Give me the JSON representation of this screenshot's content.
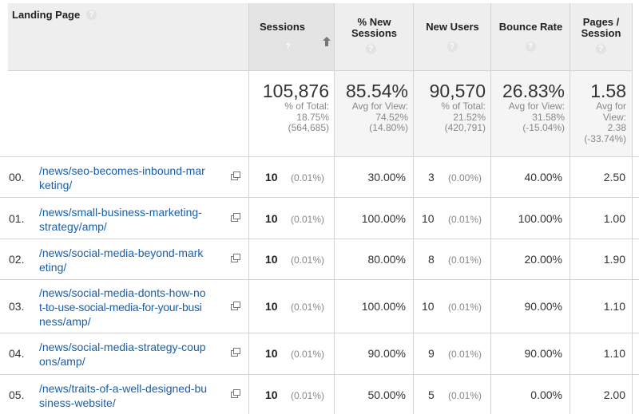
{
  "header": {
    "landing_page": "Landing Page",
    "help": "?",
    "sessions": "Sessions",
    "pct_new_sessions_1": "% New",
    "pct_new_sessions_2": "Sessions",
    "new_users": "New Users",
    "bounce_rate": "Bounce Rate",
    "pages_session_1": "Pages /",
    "pages_session_2": "Session"
  },
  "totals": {
    "sessions": {
      "value": "105,876",
      "l1": "% of Total:",
      "l2": "18.75%",
      "l3": "(564,685)"
    },
    "pct_new": {
      "value": "85.54%",
      "l1": "Avg for View:",
      "l2": "74.52%",
      "l3": "(14.80%)"
    },
    "new_users": {
      "value": "90,570",
      "l1": "% of Total:",
      "l2": "21.52%",
      "l3": "(420,791)"
    },
    "bounce": {
      "value": "26.83%",
      "l1": "Avg for View:",
      "l2": "31.58%",
      "l3": "(-15.04%)"
    },
    "pages": {
      "value": "1.58",
      "l1": "Avg for",
      "l2": "View:",
      "l3": "2.38",
      "l4": "(-33.74%)"
    }
  },
  "rows": [
    {
      "idx": "00.",
      "line1": "/news/seo-becomes-inbound-mar",
      "line2": "keting/",
      "sessions": "10",
      "sessions_pct": "(0.01%)",
      "pct_new": "30.00%",
      "new_users": "3",
      "new_users_pct": "(0.00%)",
      "bounce": "40.00%",
      "pages": "2.50"
    },
    {
      "idx": "01.",
      "line1": "/news/small-business-marketing-",
      "line2": "strategy/amp/",
      "sessions": "10",
      "sessions_pct": "(0.01%)",
      "pct_new": "100.00%",
      "new_users": "10",
      "new_users_pct": "(0.01%)",
      "bounce": "100.00%",
      "pages": "1.00"
    },
    {
      "idx": "02.",
      "line1": "/news/social-media-beyond-mark",
      "line2": "eting/",
      "sessions": "10",
      "sessions_pct": "(0.01%)",
      "pct_new": "80.00%",
      "new_users": "8",
      "new_users_pct": "(0.01%)",
      "bounce": "20.00%",
      "pages": "1.90"
    },
    {
      "idx": "03.",
      "line1": "/news/social-media-donts-how-no",
      "line2": "t-to-use-social-media-for-your-busi",
      "line3": "ness/amp/",
      "sessions": "10",
      "sessions_pct": "(0.01%)",
      "pct_new": "100.00%",
      "new_users": "10",
      "new_users_pct": "(0.01%)",
      "bounce": "90.00%",
      "pages": "1.10"
    },
    {
      "idx": "04.",
      "line1": "/news/social-media-strategy-coup",
      "line2": "ons/amp/",
      "sessions": "10",
      "sessions_pct": "(0.01%)",
      "pct_new": "90.00%",
      "new_users": "9",
      "new_users_pct": "(0.01%)",
      "bounce": "90.00%",
      "pages": "1.10"
    },
    {
      "idx": "05.",
      "line1": "/news/traits-of-a-well-designed-bu",
      "line2": "siness-website/",
      "sessions": "10",
      "sessions_pct": "(0.01%)",
      "pct_new": "50.00%",
      "new_users": "5",
      "new_users_pct": "(0.01%)",
      "bounce": "0.00%",
      "pages": "2.00"
    }
  ]
}
